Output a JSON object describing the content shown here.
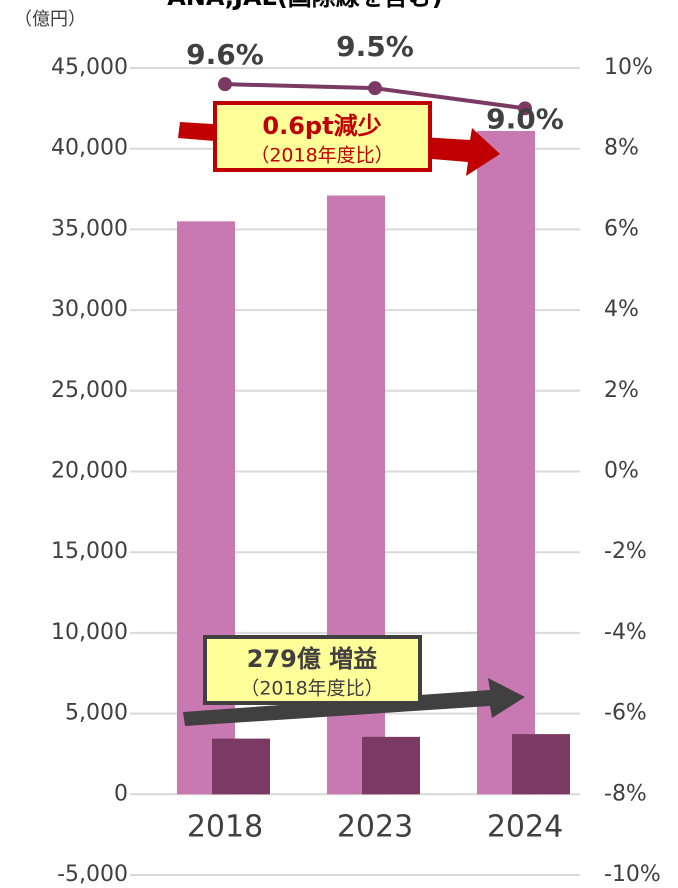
{
  "chart_data": {
    "type": "bar",
    "title": "ANA,JAL(国際線を含む)",
    "y_unit": "（億円）",
    "categories": [
      "2018",
      "2023",
      "2024"
    ],
    "series": [
      {
        "color": "#c979b2",
        "values": [
          35500,
          37100,
          41100
        ]
      },
      {
        "color": "#7b3a63",
        "values": [
          3450,
          3560,
          3729
        ]
      },
      {
        "type": "line",
        "axis": "y2",
        "color": "#7b3a63",
        "values": [
          9.6,
          9.5,
          9.0
        ],
        "value_labels": [
          "9.6%",
          "9.5%",
          "9.0%"
        ]
      }
    ],
    "ylim": [
      -5000,
      45000
    ],
    "yticks": [
      {
        "value": -5000,
        "label": "-5,000"
      },
      0,
      {
        "value": 5000,
        "label": "5,000"
      },
      {
        "value": 10000,
        "label": "10,000"
      },
      {
        "value": 15000,
        "label": "15,000"
      },
      {
        "value": 20000,
        "label": "20,000"
      },
      {
        "value": 25000,
        "label": "25,000"
      },
      {
        "value": 30000,
        "label": "30,000"
      },
      {
        "value": 35000,
        "label": "35,000"
      },
      {
        "value": 40000,
        "label": "40,000"
      },
      {
        "value": 45000,
        "label": "45,000"
      }
    ],
    "y2lim": [
      -10,
      10
    ],
    "y2ticks": [
      {
        "value": -10,
        "label": "-10%"
      },
      {
        "value": -8,
        "label": "-8%"
      },
      {
        "value": -6,
        "label": "-6%"
      },
      {
        "value": -4,
        "label": "-4%"
      },
      {
        "value": -2,
        "label": "-2%"
      },
      {
        "value": 0,
        "label": "0%"
      },
      {
        "value": 2,
        "label": "2%"
      },
      {
        "value": 4,
        "label": "4%"
      },
      {
        "value": 6,
        "label": "6%"
      },
      {
        "value": 8,
        "label": "8%"
      },
      {
        "value": 10,
        "label": "10%"
      }
    ],
    "grid": true,
    "annotations": [
      {
        "text": "0.6pt減少",
        "note": "（2018年度比）"
      },
      {
        "text": "279億 増益",
        "note": "（2018年度比）"
      }
    ]
  }
}
